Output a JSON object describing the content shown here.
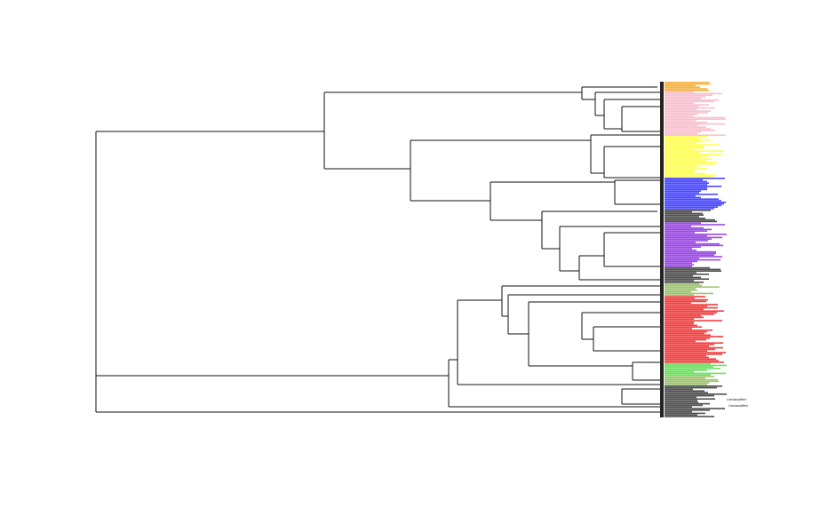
{
  "figure": {
    "type": "phylogenetic-tree",
    "orientation": "rightward",
    "background": "#ffffff",
    "branch_color": "#111111"
  },
  "clades": [
    {
      "id": "orange",
      "color": "#f5a623",
      "tips": 6
    },
    {
      "id": "pink",
      "color": "#f7b6c8",
      "tips": 28
    },
    {
      "id": "yellow",
      "color": "#ffff33",
      "tips": 26
    },
    {
      "id": "blue",
      "color": "#2b2bff",
      "tips": 20
    },
    {
      "id": "black-1",
      "color": "#333333",
      "tips": 8
    },
    {
      "id": "purple",
      "color": "#8b2be2",
      "tips": 28
    },
    {
      "id": "black-2",
      "color": "#333333",
      "tips": 10
    },
    {
      "id": "green-1",
      "color": "#8fbc5a",
      "tips": 8
    },
    {
      "id": "red",
      "color": "#ee2222",
      "tips": 42
    },
    {
      "id": "green-2",
      "color": "#55dd44",
      "tips": 8
    },
    {
      "id": "green-3",
      "color": "#8fbc5a",
      "tips": 6
    },
    {
      "id": "black-3",
      "color": "#333333",
      "tips": 20
    }
  ],
  "readable_labels": [
    "Unclassified",
    "Unclassified"
  ]
}
